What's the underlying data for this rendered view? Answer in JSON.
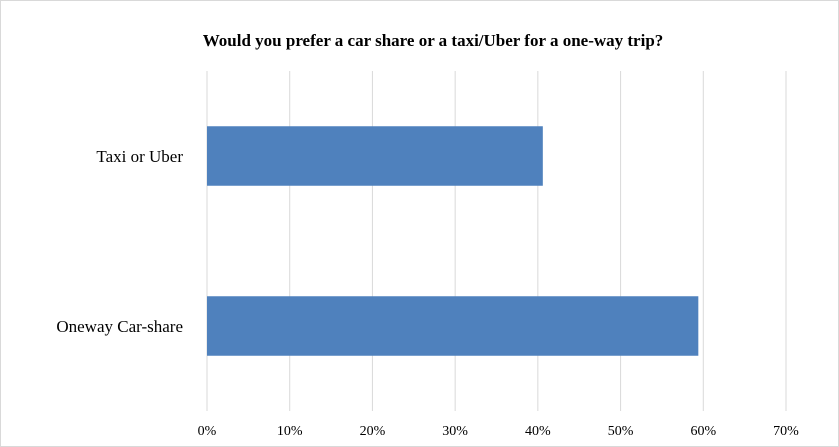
{
  "chart_data": {
    "type": "bar",
    "orientation": "horizontal",
    "title": "Would you prefer a car share or a taxi/Uber for a one-way trip?",
    "categories": [
      "Taxi or Uber",
      "Oneway Car-share"
    ],
    "values": [
      40.6,
      59.4
    ],
    "xlim": [
      0,
      70
    ],
    "x_ticks": [
      0,
      10,
      20,
      30,
      40,
      50,
      60,
      70
    ],
    "x_tick_labels": [
      "0%",
      "10%",
      "20%",
      "30%",
      "40%",
      "50%",
      "60%",
      "70%"
    ],
    "grid": "vertical",
    "legend": "none",
    "bar_color": "#4f81bd",
    "grid_color": "#d9d9d9"
  }
}
